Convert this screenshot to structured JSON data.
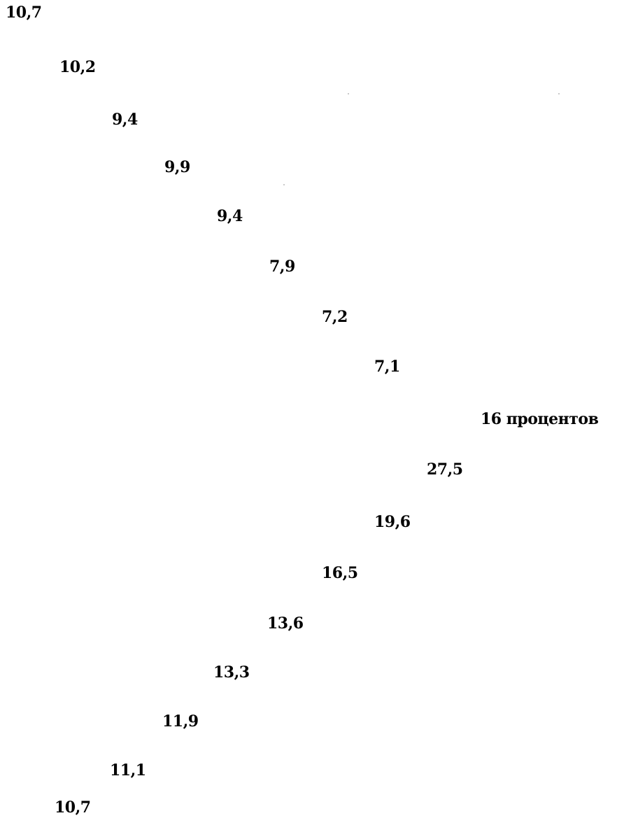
{
  "values": [
    "10,7",
    "10,2",
    "9,4",
    "9,9",
    "9,4",
    "7,9",
    "7,2",
    "7,1",
    "16 процентов",
    "27,5",
    "19,6",
    "16,5",
    "13,6",
    "13,3",
    "11,9",
    "11,1",
    "10,7"
  ]
}
